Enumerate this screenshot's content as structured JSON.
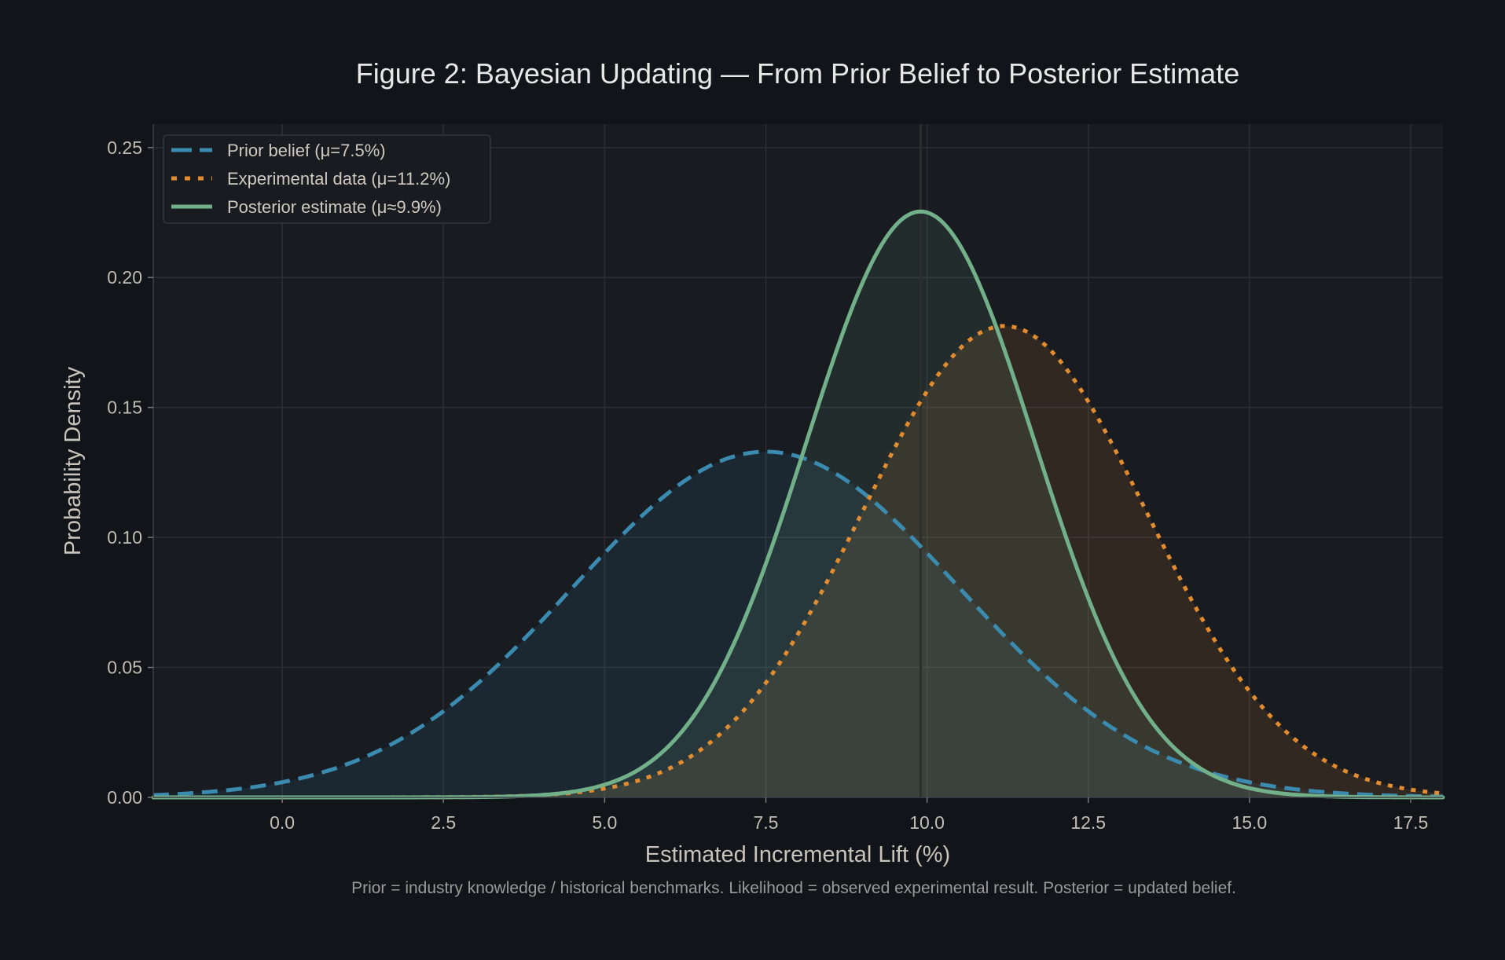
{
  "chart_data": {
    "type": "line",
    "title": "Figure 2: Bayesian Updating — From Prior Belief to Posterior Estimate",
    "xlabel": "Estimated Incremental Lift (%)",
    "ylabel": "Probability Density",
    "caption": "Prior = industry knowledge / historical benchmarks. Likelihood = observed experimental result. Posterior = updated belief.",
    "xlim": [
      -2,
      18
    ],
    "ylim": [
      0,
      0.259
    ],
    "xticks": [
      "0.0",
      "2.5",
      "5.0",
      "7.5",
      "10.0",
      "12.5",
      "15.0",
      "17.5"
    ],
    "yticks": [
      "0.00",
      "0.05",
      "0.10",
      "0.15",
      "0.20",
      "0.25"
    ],
    "grid": true,
    "legend_position": "top-left",
    "posterior_marker_x": 9.9,
    "series": [
      {
        "name": "Prior belief (μ=7.5%)",
        "distribution": "normal",
        "mean": 7.5,
        "sd": 3.0,
        "peak": 0.133,
        "style": "dashed",
        "color": "#3b8bb0",
        "filled": true
      },
      {
        "name": "Experimental data (μ=11.2%)",
        "distribution": "normal",
        "mean": 11.2,
        "sd": 2.2,
        "peak": 0.181,
        "style": "dotted",
        "color": "#e38c2f",
        "filled": true
      },
      {
        "name": "Posterior estimate (μ≈9.9%)",
        "distribution": "normal",
        "mean": 9.9,
        "sd": 1.77,
        "peak": 0.225,
        "style": "solid",
        "color": "#72b08a",
        "filled": true
      }
    ]
  }
}
